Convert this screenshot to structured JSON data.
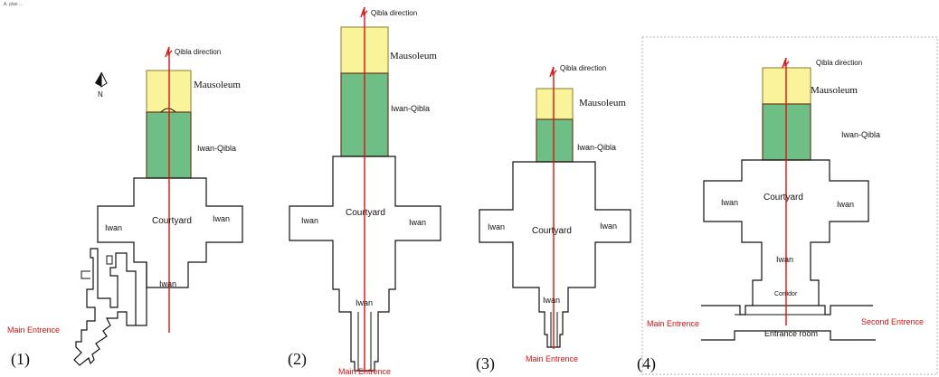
{
  "colors": {
    "mausoleum": "#f9f49a",
    "iwan_qibla": "#6dbf86",
    "axis": "#e01010",
    "outline": "#111111",
    "frame": "#b0b0b0"
  },
  "header_text": "A. plan ...",
  "compass": {
    "label": "N",
    "icon": "north-arrow-icon"
  },
  "plans": [
    {
      "number": "(1)",
      "qibla": "Qibla direction",
      "mausoleum": "Mausoleum",
      "iwan_qibla": "Iwan-Qibla",
      "courtyard": "Courtyard",
      "iwan_left": "Iwan",
      "iwan_right": "Iwan",
      "iwan_bottom": "Iwan",
      "entrance": "Main Entrence"
    },
    {
      "number": "(2)",
      "qibla": "Qibla direction",
      "mausoleum": "Mausoleum",
      "iwan_qibla": "Iwan-Qibla",
      "courtyard": "Courtyard",
      "iwan_left": "Iwan",
      "iwan_right": "Iwan",
      "iwan_bottom": "Iwan",
      "entrance": "Main Entrence"
    },
    {
      "number": "(3)",
      "qibla": "Qibla direction",
      "mausoleum": "Mausoleum",
      "iwan_qibla": "Iwan-Qibla",
      "courtyard": "Courtyard",
      "iwan_left": "Iwan",
      "iwan_right": "Iwan",
      "iwan_bottom": "Iwan",
      "entrance": "Main Entrence"
    },
    {
      "number": "(4)",
      "qibla": "Qibla direction",
      "mausoleum": "Mausoleum",
      "iwan_qibla": "Iwan-Qibla",
      "courtyard": "Courtyard",
      "iwan_left": "Iwan",
      "iwan_right": "Iwan",
      "iwan_bottom": "Iwan",
      "corridor": "Corridor",
      "entrance": "Main Entrence",
      "second_entrance": "Second Entrence",
      "entrance_room": "Entrance room"
    }
  ]
}
